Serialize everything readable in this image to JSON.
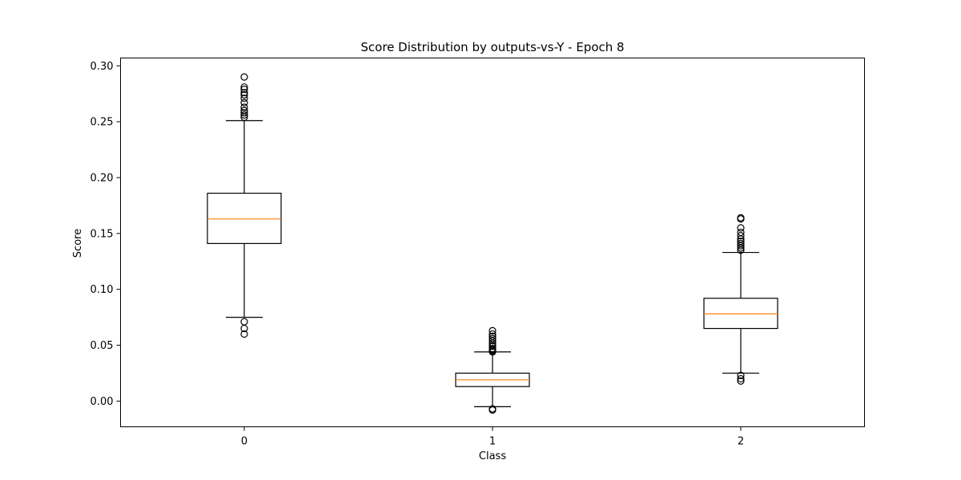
{
  "chart_data": {
    "type": "box",
    "title": "Score Distribution by outputs-vs-Y - Epoch 8",
    "xlabel": "Class",
    "ylabel": "Score",
    "categories": [
      "0",
      "1",
      "2"
    ],
    "ylim": [
      -0.023,
      0.307
    ],
    "yticks": [
      0.0,
      0.05,
      0.1,
      0.15,
      0.2,
      0.25,
      0.3
    ],
    "ytick_labels": [
      "0.00",
      "0.05",
      "0.10",
      "0.15",
      "0.20",
      "0.25",
      "0.30"
    ],
    "grid": false,
    "boxes": [
      {
        "category": "0",
        "whisker_low": 0.075,
        "q1": 0.141,
        "median": 0.163,
        "q3": 0.186,
        "whisker_high": 0.251,
        "outliers": [
          0.06,
          0.065,
          0.071,
          0.254,
          0.256,
          0.258,
          0.26,
          0.263,
          0.267,
          0.271,
          0.274,
          0.276,
          0.279,
          0.281,
          0.29
        ]
      },
      {
        "category": "1",
        "whisker_low": -0.005,
        "q1": 0.013,
        "median": 0.019,
        "q3": 0.025,
        "whisker_high": 0.044,
        "outliers": [
          -0.008,
          -0.007,
          0.044,
          0.045,
          0.046,
          0.047,
          0.049,
          0.05,
          0.052,
          0.054,
          0.056,
          0.058,
          0.06,
          0.063
        ]
      },
      {
        "category": "2",
        "whisker_low": 0.025,
        "q1": 0.065,
        "median": 0.078,
        "q3": 0.092,
        "whisker_high": 0.133,
        "outliers": [
          0.018,
          0.02,
          0.023,
          0.135,
          0.137,
          0.139,
          0.141,
          0.143,
          0.145,
          0.148,
          0.151,
          0.155,
          0.163,
          0.164
        ]
      }
    ],
    "colors": {
      "box": "#000000",
      "median": "#ff7f0e",
      "outlier": "#000000"
    }
  }
}
